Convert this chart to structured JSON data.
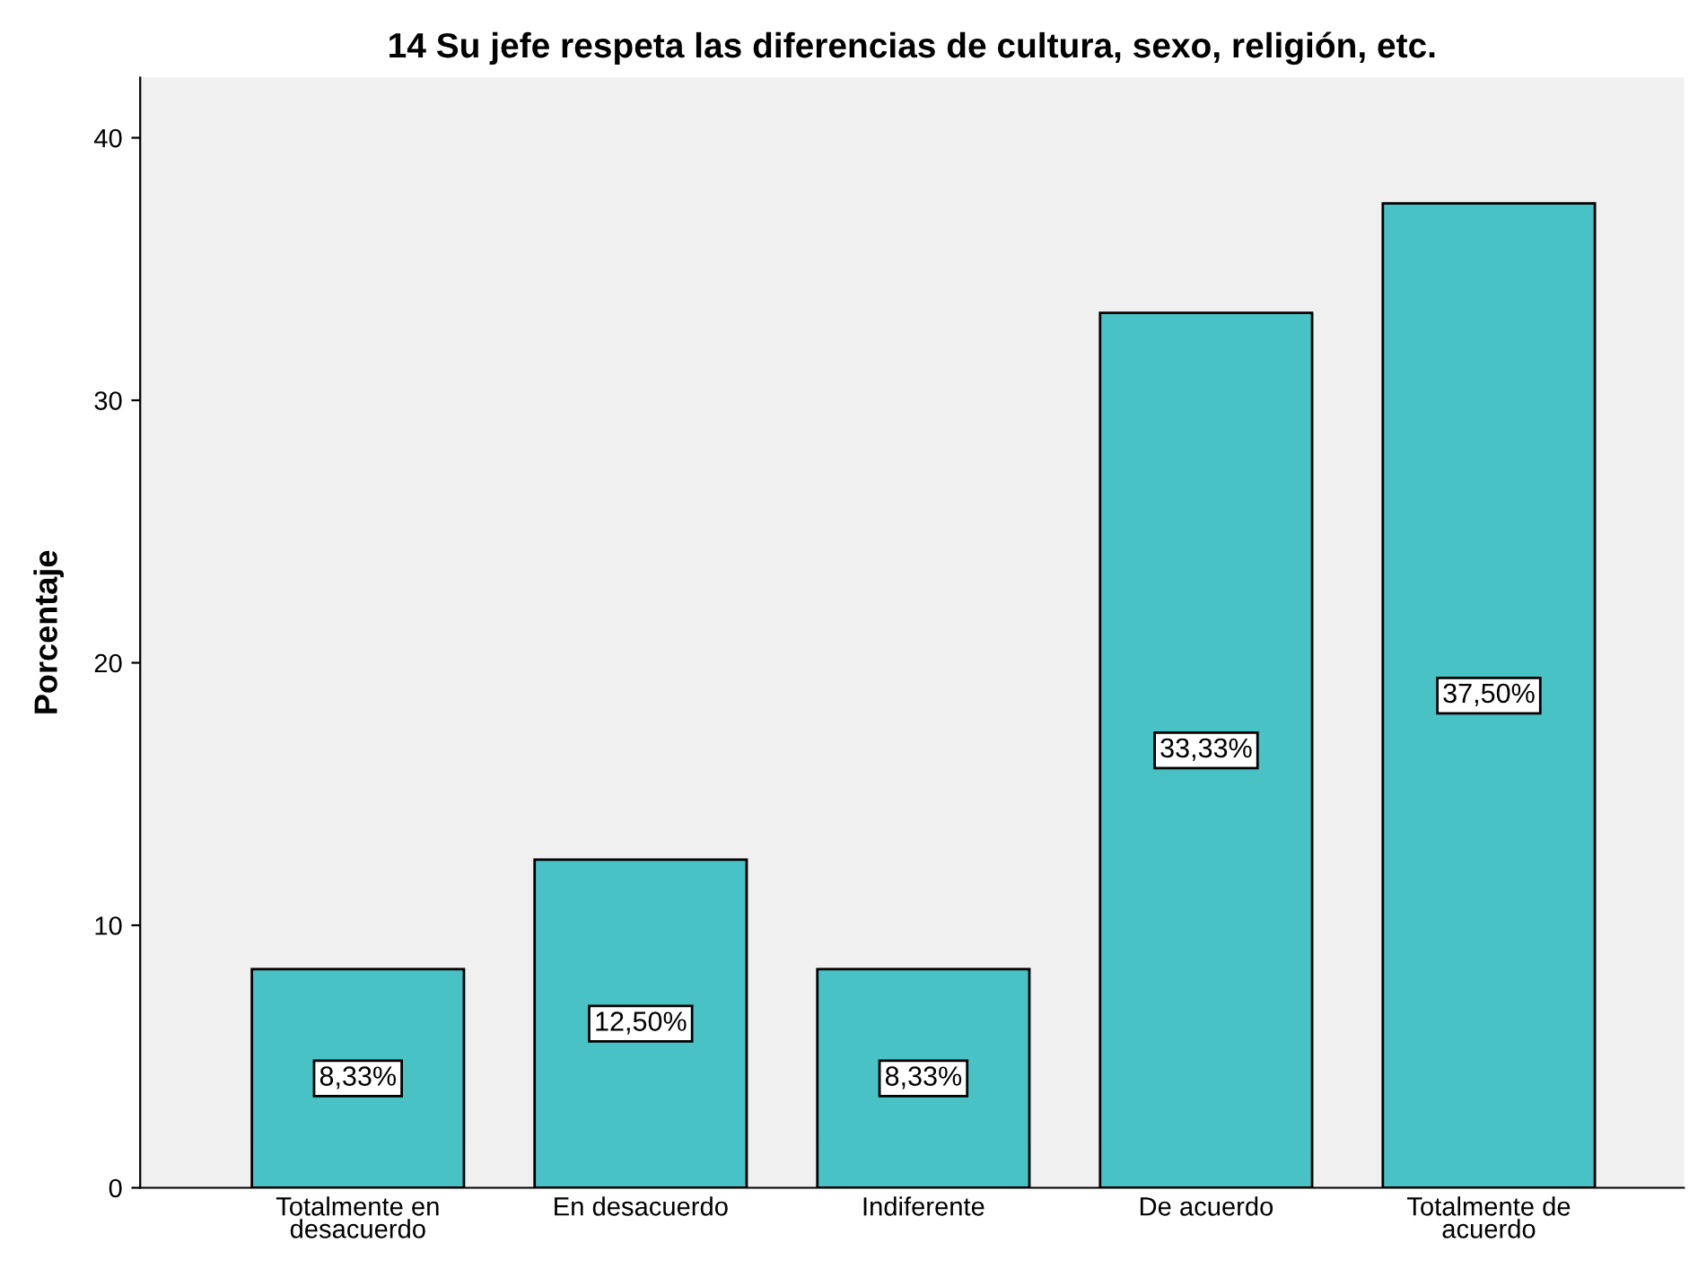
{
  "chart_data": {
    "type": "bar",
    "title": "14 Su jefe respeta las diferencias de cultura, sexo, religión, etc.",
    "ylabel": "Porcentaje",
    "categories": [
      "Totalmente en\ndesacuerdo",
      "En desacuerdo",
      "Indiferente",
      "De acuerdo",
      "Totalmente de\nacuerdo"
    ],
    "values": [
      8.33,
      12.5,
      8.33,
      33.33,
      37.5
    ],
    "value_labels": [
      "8,33%",
      "12,50%",
      "8,33%",
      "33,33%",
      "37,50%"
    ],
    "color": "#48c2c5",
    "ylim": [
      0,
      42.3
    ],
    "yticks": [
      0,
      10,
      20,
      30,
      40
    ],
    "grid": false
  }
}
